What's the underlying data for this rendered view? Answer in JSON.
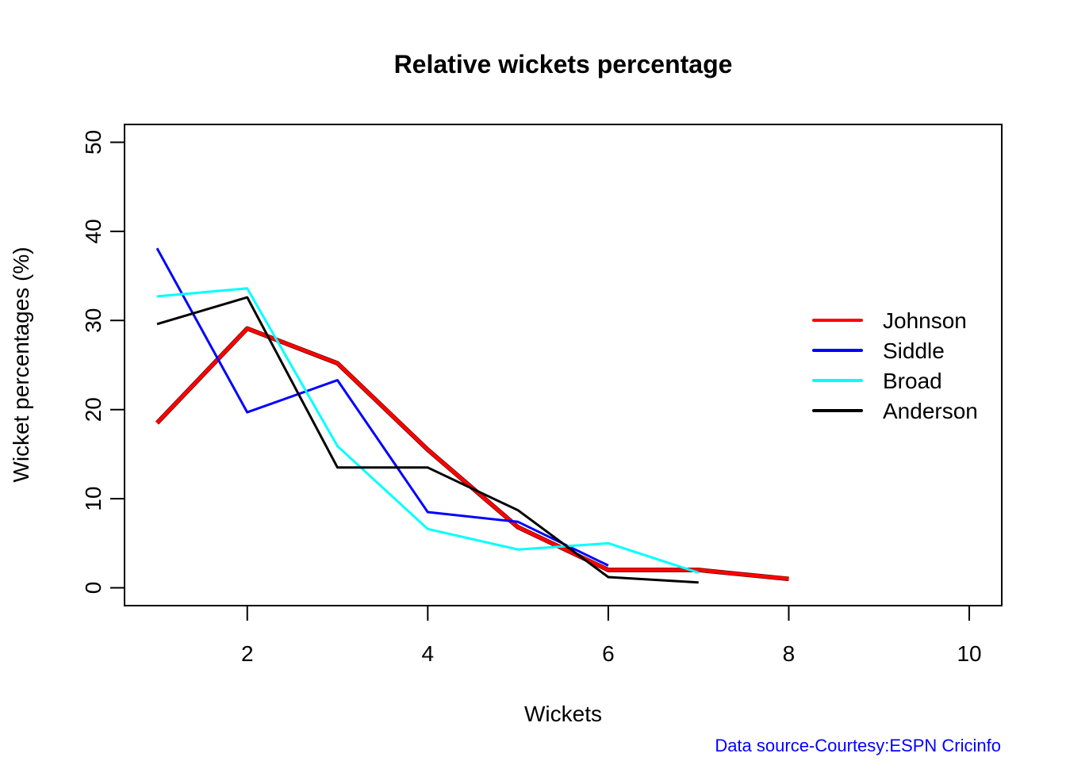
{
  "chart_data": {
    "type": "line",
    "title": "Relative wickets percentage",
    "xlabel": "Wickets",
    "ylabel": "Wicket percentages (%)",
    "xlim": [
      1,
      10
    ],
    "ylim": [
      0,
      50
    ],
    "x_ticks": [
      2,
      4,
      6,
      8,
      10
    ],
    "y_ticks": [
      0,
      10,
      20,
      30,
      40,
      50
    ],
    "grid": false,
    "legend_position": "right",
    "series": [
      {
        "name": "Johnson",
        "color": "#ff0000",
        "x": [
          1,
          2,
          3,
          4,
          5,
          6,
          7,
          8
        ],
        "values": [
          18.5,
          29.1,
          25.2,
          15.5,
          6.8,
          2.0,
          2.0,
          1.0
        ]
      },
      {
        "name": "Siddle",
        "color": "#0000ff",
        "x": [
          1,
          2,
          3,
          4,
          5,
          6
        ],
        "values": [
          38.1,
          19.7,
          23.3,
          8.5,
          7.4,
          2.5
        ]
      },
      {
        "name": "Broad",
        "color": "#00ffff",
        "x": [
          1,
          2,
          3,
          4,
          5,
          6,
          7
        ],
        "values": [
          32.7,
          33.6,
          15.9,
          6.6,
          4.3,
          5.0,
          1.7
        ]
      },
      {
        "name": "Anderson",
        "color": "#000000",
        "x": [
          1,
          2,
          3,
          4,
          5,
          6,
          7
        ],
        "values": [
          29.6,
          32.6,
          13.5,
          13.5,
          8.7,
          1.2,
          0.6
        ]
      }
    ],
    "annotation": {
      "text": "Data source-Courtesy:ESPN Cricinfo",
      "color": "#0000ff",
      "position": "bottom-right"
    }
  }
}
